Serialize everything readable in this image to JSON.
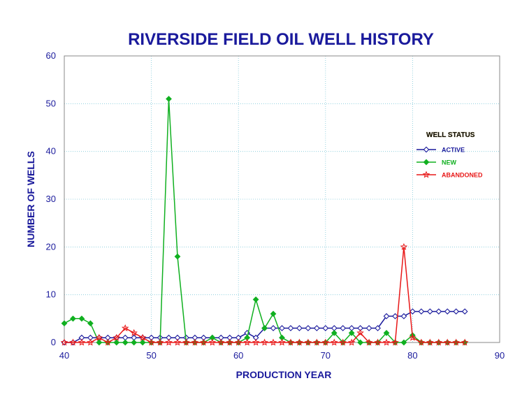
{
  "chart_data": {
    "type": "line",
    "title": "RIVERSIDE FIELD OIL WELL HISTORY",
    "xlabel": "PRODUCTION YEAR",
    "ylabel": "NUMBER OF WELLS",
    "xlim": [
      40,
      90
    ],
    "ylim": [
      0,
      60
    ],
    "xticks": [
      40,
      50,
      60,
      70,
      80,
      90
    ],
    "yticks": [
      0,
      10,
      20,
      30,
      40,
      50,
      60
    ],
    "grid": true,
    "legend_title": "WELL STATUS",
    "legend_position": "right",
    "series": [
      {
        "name": "ACTIVE",
        "color": "#1a1a9c",
        "marker": "diamond-open",
        "x": [
          40,
          41,
          42,
          43,
          44,
          45,
          46,
          47,
          48,
          49,
          50,
          51,
          52,
          53,
          54,
          55,
          56,
          57,
          58,
          59,
          60,
          61,
          62,
          63,
          64,
          65,
          66,
          67,
          68,
          69,
          70,
          71,
          72,
          73,
          74,
          75,
          76,
          77,
          78,
          79,
          80,
          81,
          82,
          83,
          84,
          85,
          86
        ],
        "y": [
          0,
          0,
          1,
          1,
          1,
          1,
          1,
          1,
          1,
          1,
          1,
          1,
          1,
          1,
          1,
          1,
          1,
          1,
          1,
          1,
          1,
          2,
          1,
          3,
          3,
          3,
          3,
          3,
          3,
          3,
          3,
          3,
          3,
          3,
          3,
          3,
          3,
          5.5,
          5.5,
          5.5,
          6.5,
          6.5,
          6.5,
          6.5,
          6.5,
          6.5,
          6.5
        ]
      },
      {
        "name": "NEW",
        "color": "#10b020",
        "marker": "diamond-filled",
        "x": [
          40,
          41,
          42,
          43,
          44,
          45,
          46,
          47,
          48,
          49,
          50,
          51,
          52,
          53,
          54,
          55,
          56,
          57,
          58,
          59,
          60,
          61,
          62,
          63,
          64,
          65,
          66,
          67,
          68,
          69,
          70,
          71,
          72,
          73,
          74,
          75,
          76,
          77,
          78,
          79,
          80,
          81,
          82,
          83,
          84,
          85,
          86
        ],
        "y": [
          4,
          5,
          5,
          4,
          0,
          0,
          0,
          0,
          0,
          0,
          0,
          0,
          51,
          18,
          0,
          0,
          0,
          1,
          0,
          0,
          0,
          1,
          9,
          3,
          6,
          1,
          0,
          0,
          0,
          0,
          0,
          2,
          0,
          2,
          0,
          0,
          0,
          2,
          0,
          0,
          1.5,
          0,
          0,
          0,
          0,
          0,
          0
        ]
      },
      {
        "name": "ABANDONED",
        "color": "#e81818",
        "marker": "star-open",
        "x": [
          40,
          41,
          42,
          43,
          44,
          45,
          46,
          47,
          48,
          49,
          50,
          51,
          52,
          53,
          54,
          55,
          56,
          57,
          58,
          59,
          60,
          61,
          62,
          63,
          64,
          65,
          66,
          67,
          68,
          69,
          70,
          71,
          72,
          73,
          74,
          75,
          76,
          77,
          78,
          79,
          80,
          81,
          82,
          83,
          84,
          85,
          86
        ],
        "y": [
          0,
          0,
          0,
          0,
          1,
          0,
          1,
          3,
          2,
          1,
          0,
          0,
          0,
          0,
          0,
          0,
          0,
          0,
          0,
          0,
          0,
          0,
          0,
          0,
          0,
          0,
          0,
          0,
          0,
          0,
          0,
          0,
          0,
          0,
          2,
          0,
          0,
          0,
          0,
          20,
          1,
          0,
          0,
          0,
          0,
          0,
          0
        ]
      }
    ]
  }
}
